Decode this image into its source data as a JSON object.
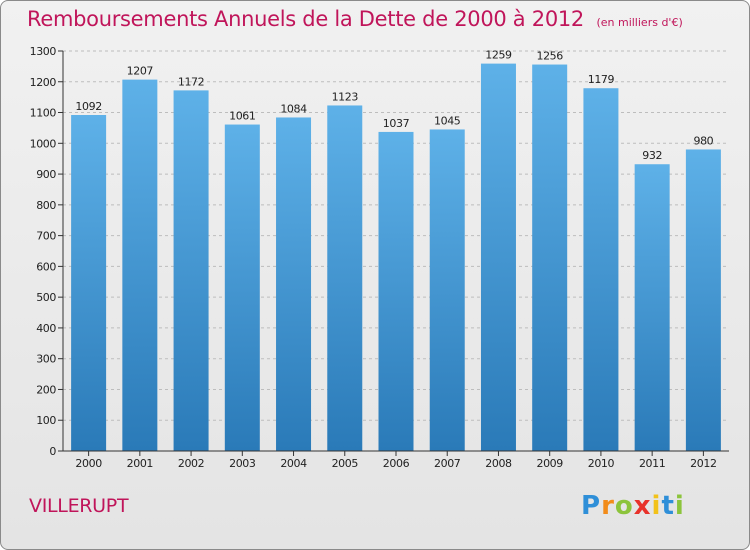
{
  "chart_data": {
    "type": "bar",
    "title": "Remboursements Annuels de la Dette de 2000 à 2012",
    "subtitle": "(en milliers d'€)",
    "categories": [
      "2000",
      "2001",
      "2002",
      "2003",
      "2004",
      "2005",
      "2006",
      "2007",
      "2008",
      "2009",
      "2010",
      "2011",
      "2012"
    ],
    "values": [
      1092,
      1207,
      1172,
      1061,
      1084,
      1123,
      1037,
      1045,
      1259,
      1256,
      1179,
      932,
      980
    ],
    "data_labels": [
      "1092",
      "1207",
      "1172",
      "1061",
      "1084",
      "1123",
      "1037",
      "1045",
      "1259",
      "1256",
      "1179",
      "932",
      "980"
    ],
    "ylim": [
      0,
      1300
    ],
    "yticks": [
      0,
      100,
      200,
      300,
      400,
      500,
      600,
      700,
      800,
      900,
      1000,
      1100,
      1200,
      1300
    ],
    "ytick_labels": [
      "0",
      "100",
      "200",
      "300",
      "400",
      "500",
      "600",
      "700",
      "800",
      "900",
      "1000",
      "1100",
      "1200",
      "1300"
    ],
    "grid": "horizontal dashed",
    "xlabel": "",
    "ylabel": "",
    "bar_color_top": "#5eb1e8",
    "bar_color_bottom": "#2a7ab8"
  },
  "commune": "VILLERUPT",
  "logo": {
    "text": "Proxiti",
    "letters": [
      "P",
      "r",
      "o",
      "x",
      "i",
      "t",
      "i"
    ],
    "colors": [
      "#2f8fd8",
      "#f28c1a",
      "#8cc43c",
      "#e8322b",
      "#f2c21a",
      "#2f8fd8",
      "#8cc43c"
    ]
  },
  "colors": {
    "accent": "#c0155a",
    "background": "#ececec"
  }
}
